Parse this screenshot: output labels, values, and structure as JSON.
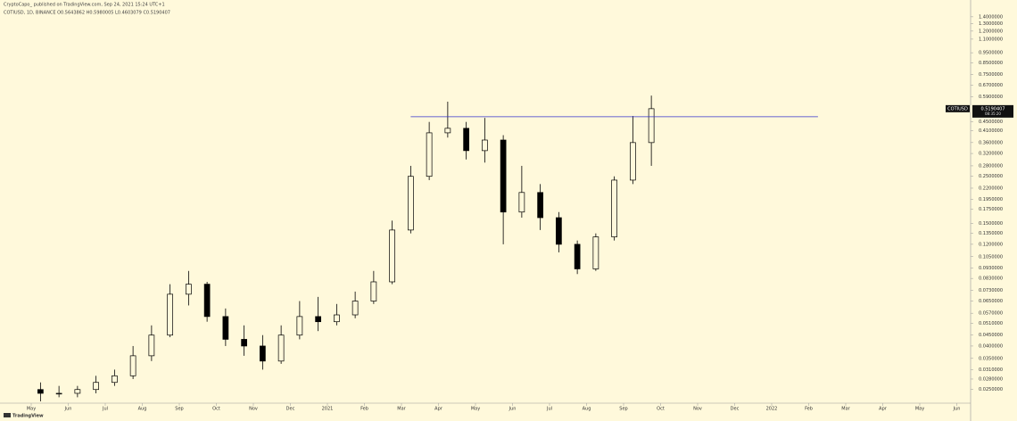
{
  "header": {
    "publisher": "CryptoCapo_ published on TradingView.com, Sep 24, 2021 15:24 UTC+1",
    "symbol_line": "COTIUSD, 1D, BINANCE  O0.5643862  H0.5980005  L0.4603079  C0.5190407"
  },
  "branding": "TradingView",
  "chart_data": {
    "type": "candlestick",
    "log_scale": true,
    "candle_color": "#000000",
    "line_color": "#3333cc",
    "symbol": "COTIUSD",
    "countdown": "08:35:20",
    "last_price": {
      "value": 0.5190407,
      "label": "0.5190407"
    },
    "resistance_level": 0.476,
    "categories": [
      "May",
      null,
      "Jun",
      null,
      "Jul",
      null,
      "Aug",
      null,
      "Sep",
      null,
      "Oct",
      null,
      "Nov",
      null,
      "Dec",
      null,
      "2021",
      null,
      "Feb",
      null,
      "Mar",
      null,
      "Apr",
      null,
      "May",
      null,
      "Jun",
      null,
      "Jul",
      null,
      "Aug",
      null,
      "Sep",
      null,
      "Oct",
      null,
      "Nov",
      null,
      "Dec",
      null,
      "2022",
      null,
      "Feb",
      null,
      "Mar",
      null,
      "Apr",
      null,
      "May",
      null,
      "Jun",
      null
    ],
    "open": [
      0.025,
      0.024,
      0.024,
      0.025,
      0.027,
      0.029,
      0.036,
      0.045,
      0.07,
      0.078,
      0.055,
      0.043,
      0.04,
      0.034,
      0.045,
      0.055,
      0.052,
      0.056,
      0.065,
      0.08,
      0.14,
      0.25,
      0.4,
      0.42,
      0.33,
      0.37,
      0.17,
      0.21,
      0.16,
      0.12,
      0.092,
      0.13,
      0.24,
      0.36,
      null,
      null,
      null,
      null,
      null,
      null,
      null,
      null,
      null,
      null,
      null,
      null,
      null,
      null,
      null,
      null,
      null,
      null
    ],
    "high": [
      0.027,
      0.026,
      0.026,
      0.029,
      0.031,
      0.04,
      0.05,
      0.078,
      0.09,
      0.08,
      0.06,
      0.05,
      0.045,
      0.05,
      0.065,
      0.068,
      0.063,
      0.072,
      0.09,
      0.155,
      0.28,
      0.45,
      0.56,
      0.45,
      0.47,
      0.39,
      0.28,
      0.23,
      0.17,
      0.125,
      0.135,
      0.25,
      0.48,
      0.598,
      null,
      null,
      null,
      null,
      null,
      null,
      null,
      null,
      null,
      null,
      null,
      null,
      null,
      null,
      null,
      null,
      null,
      null
    ],
    "low": [
      0.022,
      0.023,
      0.023,
      0.024,
      0.026,
      0.028,
      0.034,
      0.044,
      0.062,
      0.052,
      0.04,
      0.036,
      0.031,
      0.033,
      0.043,
      0.047,
      0.05,
      0.054,
      0.063,
      0.078,
      0.135,
      0.24,
      0.38,
      0.3,
      0.29,
      0.12,
      0.16,
      0.14,
      0.11,
      0.087,
      0.09,
      0.125,
      0.23,
      0.28,
      null,
      null,
      null,
      null,
      null,
      null,
      null,
      null,
      null,
      null,
      null,
      null,
      null,
      null,
      null,
      null,
      null,
      null
    ],
    "close": [
      0.024,
      0.024,
      0.025,
      0.027,
      0.029,
      0.036,
      0.045,
      0.07,
      0.078,
      0.055,
      0.043,
      0.04,
      0.034,
      0.045,
      0.055,
      0.052,
      0.056,
      0.065,
      0.08,
      0.14,
      0.25,
      0.4,
      0.42,
      0.33,
      0.37,
      0.17,
      0.21,
      0.16,
      0.12,
      0.092,
      0.13,
      0.24,
      0.36,
      0.5190407,
      null,
      null,
      null,
      null,
      null,
      null,
      null,
      null,
      null,
      null,
      null,
      null,
      null,
      null,
      null,
      null,
      null,
      null
    ],
    "ylim": [
      0.022,
      1.6
    ],
    "yticks": [
      {
        "value": 1.4,
        "label": "1.4000000"
      },
      {
        "value": 1.3,
        "label": "1.3000000"
      },
      {
        "value": 1.2,
        "label": "1.2000000"
      },
      {
        "value": 1.1,
        "label": "1.1000000"
      },
      {
        "value": 0.95,
        "label": "0.9500000"
      },
      {
        "value": 0.85,
        "label": "0.8500000"
      },
      {
        "value": 0.75,
        "label": "0.7500000"
      },
      {
        "value": 0.67,
        "label": "0.6700000"
      },
      {
        "value": 0.59,
        "label": "0.5900000"
      },
      {
        "value": 0.45,
        "label": "0.4500000"
      },
      {
        "value": 0.41,
        "label": "0.4100000"
      },
      {
        "value": 0.36,
        "label": "0.3600000"
      },
      {
        "value": 0.32,
        "label": "0.3200000"
      },
      {
        "value": 0.28,
        "label": "0.2800000"
      },
      {
        "value": 0.25,
        "label": "0.2500000"
      },
      {
        "value": 0.22,
        "label": "0.2200000"
      },
      {
        "value": 0.195,
        "label": "0.1950000"
      },
      {
        "value": 0.175,
        "label": "0.1750000"
      },
      {
        "value": 0.15,
        "label": "0.1500000"
      },
      {
        "value": 0.135,
        "label": "0.1350000"
      },
      {
        "value": 0.12,
        "label": "0.1200000"
      },
      {
        "value": 0.105,
        "label": "0.1050000"
      },
      {
        "value": 0.093,
        "label": "0.0930000"
      },
      {
        "value": 0.083,
        "label": "0.0830000"
      },
      {
        "value": 0.073,
        "label": "0.0730000"
      },
      {
        "value": 0.065,
        "label": "0.0650000"
      },
      {
        "value": 0.057,
        "label": "0.0570000"
      },
      {
        "value": 0.051,
        "label": "0.0510000"
      },
      {
        "value": 0.045,
        "label": "0.0450000"
      },
      {
        "value": 0.04,
        "label": "0.0400000"
      },
      {
        "value": 0.035,
        "label": "0.0350000"
      },
      {
        "value": 0.031,
        "label": "0.0310000"
      },
      {
        "value": 0.028,
        "label": "0.0280000"
      },
      {
        "value": 0.025,
        "label": "0.0250000"
      }
    ]
  }
}
